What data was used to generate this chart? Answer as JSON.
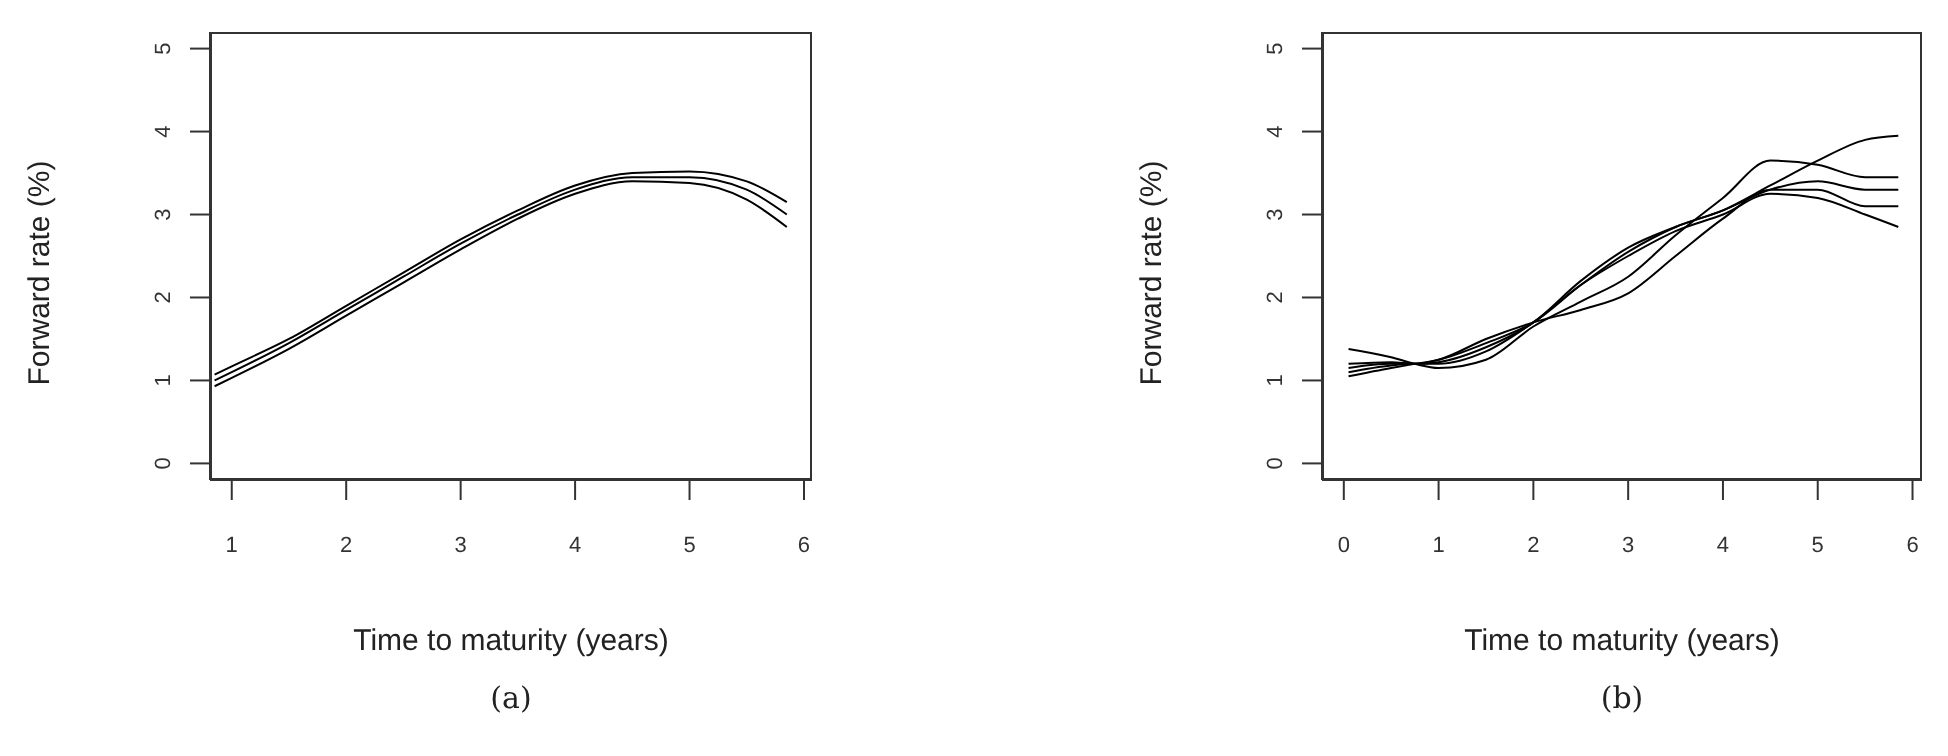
{
  "chart_data": [
    {
      "type": "line",
      "xlabel": "Time to maturity (years)",
      "ylabel": "Forward rate (%)",
      "annotations": [
        "(a)"
      ],
      "x": [
        0.85,
        1,
        1.5,
        2,
        2.5,
        3,
        3.5,
        4,
        4.5,
        5,
        5.5,
        5.85
      ],
      "xlim": [
        0.81,
        6.07
      ],
      "xticks": [
        1,
        2,
        3,
        4,
        5,
        6
      ],
      "ylim": [
        -0.2,
        5.2
      ],
      "yticks": [
        0,
        1,
        2,
        3,
        4,
        5
      ],
      "grid": false,
      "marker": "none",
      "line_style": "solid",
      "series": [
        {
          "color": "#000000",
          "values": [
            1.07,
            1.17,
            1.5,
            1.9,
            2.3,
            2.7,
            3.05,
            3.35,
            3.5,
            3.52,
            3.4,
            3.15
          ]
        },
        {
          "color": "#000000",
          "values": [
            1.0,
            1.1,
            1.45,
            1.85,
            2.25,
            2.65,
            3.0,
            3.3,
            3.45,
            3.45,
            3.3,
            3.0
          ]
        },
        {
          "color": "#000000",
          "values": [
            0.93,
            1.03,
            1.38,
            1.78,
            2.18,
            2.58,
            2.95,
            3.25,
            3.4,
            3.38,
            3.18,
            2.85
          ]
        }
      ]
    },
    {
      "type": "line",
      "xlabel": "Time to maturity (years)",
      "ylabel": "Forward rate (%)",
      "annotations": [
        "(b)"
      ],
      "x": [
        0.05,
        0.5,
        0.75,
        1,
        1.5,
        2,
        2.5,
        3,
        3.5,
        4,
        4.5,
        5,
        5.5,
        5.85
      ],
      "xlim": [
        -0.23,
        6.1
      ],
      "xticks": [
        0,
        1,
        2,
        3,
        4,
        5,
        6
      ],
      "ylim": [
        -0.2,
        5.2
      ],
      "yticks": [
        0,
        1,
        2,
        3,
        4,
        5
      ],
      "grid": false,
      "marker": "none",
      "line_style": "solid",
      "series": [
        {
          "color": "#000000",
          "values": [
            1.2,
            1.22,
            1.2,
            1.25,
            1.45,
            1.7,
            2.15,
            2.55,
            2.85,
            3.05,
            3.35,
            3.65,
            3.9,
            3.95
          ]
        },
        {
          "color": "#000000",
          "values": [
            1.15,
            1.2,
            1.2,
            1.22,
            1.4,
            1.7,
            2.2,
            2.6,
            2.85,
            3.05,
            3.3,
            3.4,
            3.3,
            3.3
          ]
        },
        {
          "color": "#000000",
          "values": [
            1.1,
            1.18,
            1.2,
            1.2,
            1.35,
            1.7,
            2.15,
            2.5,
            2.8,
            3.0,
            3.25,
            3.2,
            3.0,
            2.85
          ]
        },
        {
          "color": "#000000",
          "values": [
            1.38,
            1.28,
            1.2,
            1.15,
            1.25,
            1.65,
            1.95,
            2.25,
            2.75,
            3.2,
            3.65,
            3.6,
            3.45,
            3.45
          ]
        },
        {
          "color": "#000000",
          "values": [
            1.05,
            1.15,
            1.2,
            1.25,
            1.5,
            1.7,
            1.85,
            2.05,
            2.5,
            2.95,
            3.3,
            3.3,
            3.1,
            3.1
          ]
        }
      ]
    }
  ]
}
